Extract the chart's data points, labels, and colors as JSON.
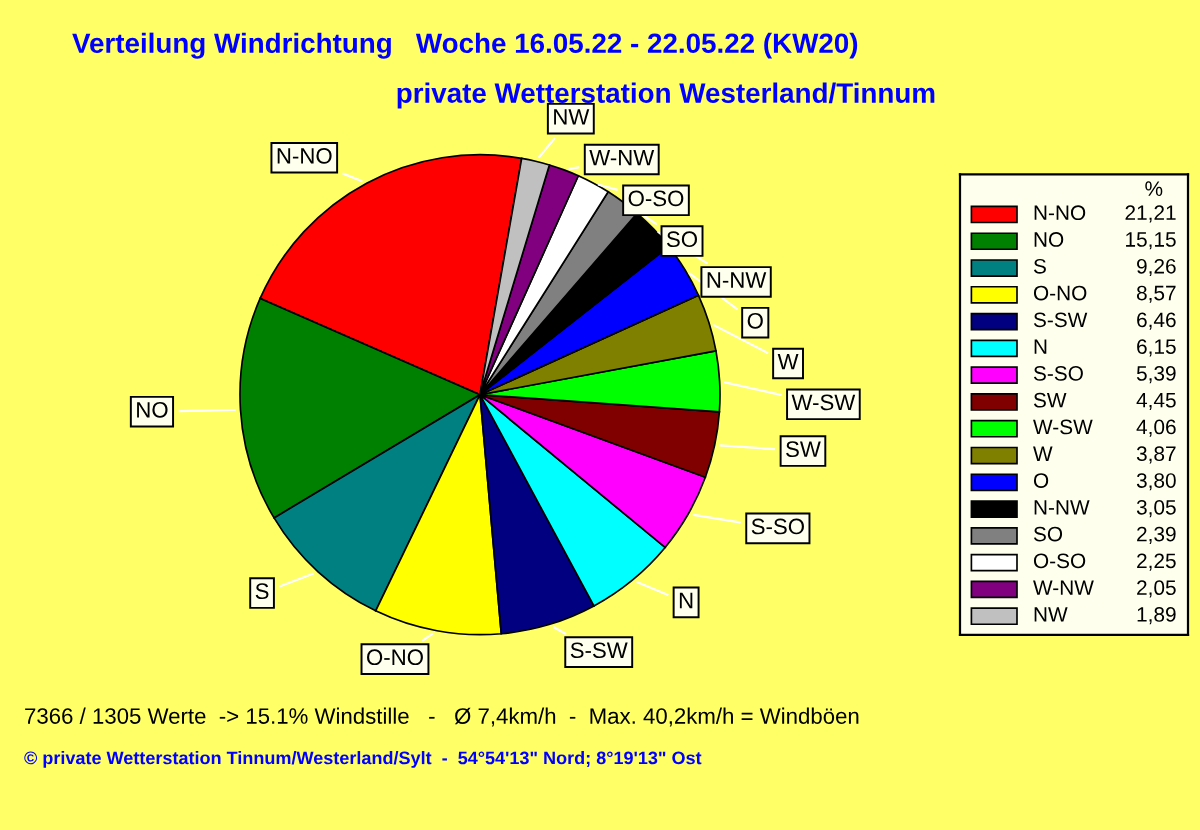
{
  "chart_data": {
    "type": "pie",
    "title": "Verteilung Windrichtung   Woche 16.05.22 - 22.05.22 (KW20)",
    "subtitle": "private Wetterstation Westerland/Tinnum",
    "legend_title": "%",
    "categories": [
      "N-NO",
      "NO",
      "S",
      "O-NO",
      "S-SW",
      "N",
      "S-SO",
      "SW",
      "W-SW",
      "W",
      "O",
      "N-NW",
      "SO",
      "O-SO",
      "W-NW",
      "NW"
    ],
    "values": [
      21.21,
      15.15,
      9.26,
      8.57,
      6.46,
      6.15,
      5.39,
      4.45,
      4.06,
      3.87,
      3.8,
      3.05,
      2.39,
      2.25,
      2.05,
      1.89
    ],
    "value_labels": [
      "21,21",
      "15,15",
      "9,26",
      "8,57",
      "6,46",
      "6,15",
      "5,39",
      "4,45",
      "4,06",
      "3,87",
      "3,80",
      "3,05",
      "2,39",
      "2,25",
      "2,05",
      "1,89"
    ],
    "colors": [
      "#ff0000",
      "#008000",
      "#008080",
      "#ffff00",
      "#000080",
      "#00ffff",
      "#ff00ff",
      "#800000",
      "#00ff00",
      "#808000",
      "#0000ff",
      "#000000",
      "#808080",
      "#ffffff",
      "#800080",
      "#c0c0c0"
    ],
    "legend": "right",
    "annotations": [
      "7366 / 1305 Werte  -> 15.1% Windstille   -   Ø 7,4km/h  -  Max. 40,2km/h = Windböen",
      "© private Wetterstation Tinnum/Westerland/Sylt  -  54°54'13\" Nord; 8°19'13\" Ost"
    ]
  }
}
